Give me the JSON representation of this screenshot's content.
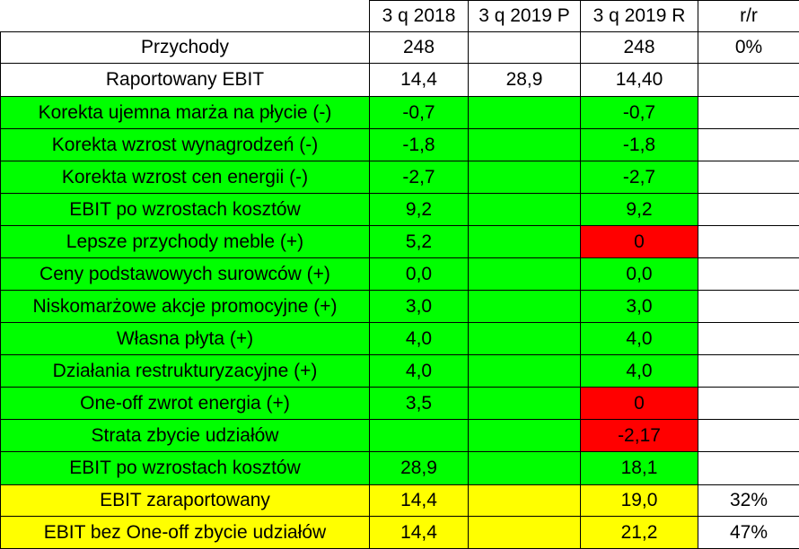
{
  "header": {
    "col_label": "",
    "col_2018": "3 q 2018",
    "col_2019p": "3 q 2019 P",
    "col_2019r": "3 q 2019 R",
    "col_yoy": "r/r"
  },
  "rows": [
    {
      "label": "Przychody",
      "v2018": "248",
      "v2019p": "",
      "v2019r": "248",
      "yoy": "0%"
    },
    {
      "label": "Raportowany EBIT",
      "v2018": "14,4",
      "v2019p": "28,9",
      "v2019r": "14,40",
      "yoy": ""
    },
    {
      "label": "Korekta ujemna marża na płycie (-)",
      "v2018": "-0,7",
      "v2019p": "",
      "v2019r": "-0,7",
      "yoy": ""
    },
    {
      "label": "Korekta wzrost wynagrodzeń (-)",
      "v2018": "-1,8",
      "v2019p": "",
      "v2019r": "-1,8",
      "yoy": ""
    },
    {
      "label": "Korekta wzrost cen energii (-)",
      "v2018": "-2,7",
      "v2019p": "",
      "v2019r": "-2,7",
      "yoy": ""
    },
    {
      "label": "EBIT po wzrostach kosztów",
      "v2018": "9,2",
      "v2019p": "",
      "v2019r": "9,2",
      "yoy": ""
    },
    {
      "label": "Lepsze przychody meble (+)",
      "v2018": "5,2",
      "v2019p": "",
      "v2019r": "0",
      "yoy": ""
    },
    {
      "label": "Ceny podstawowych surowców (+)",
      "v2018": "0,0",
      "v2019p": "",
      "v2019r": "0,0",
      "yoy": ""
    },
    {
      "label": "Niskomarżowe akcje promocyjne (+)",
      "v2018": "3,0",
      "v2019p": "",
      "v2019r": "3,0",
      "yoy": ""
    },
    {
      "label": "Własna płyta (+)",
      "v2018": "4,0",
      "v2019p": "",
      "v2019r": "4,0",
      "yoy": ""
    },
    {
      "label": "Działania restrukturyzacyjne (+)",
      "v2018": "4,0",
      "v2019p": "",
      "v2019r": "4,0",
      "yoy": ""
    },
    {
      "label": "One-off zwrot energia (+)",
      "v2018": "3,5",
      "v2019p": "",
      "v2019r": "0",
      "yoy": ""
    },
    {
      "label": "Strata zbycie udziałów",
      "v2018": "",
      "v2019p": "",
      "v2019r": "-2,17",
      "yoy": ""
    },
    {
      "label": "EBIT po wzrostach kosztów",
      "v2018": "28,9",
      "v2019p": "",
      "v2019r": "18,1",
      "yoy": ""
    },
    {
      "label": "EBIT zaraportowany",
      "v2018": "14,4",
      "v2019p": "",
      "v2019r": "19,0",
      "yoy": "32%"
    },
    {
      "label": "EBIT bez One-off zbycie udziałów",
      "v2018": "14,4",
      "v2019p": "",
      "v2019r": "21,2",
      "yoy": "47%"
    }
  ],
  "colors": {
    "green": "#00ff00",
    "red": "#ff0000",
    "yellow": "#ffff00",
    "white": "#ffffff"
  }
}
